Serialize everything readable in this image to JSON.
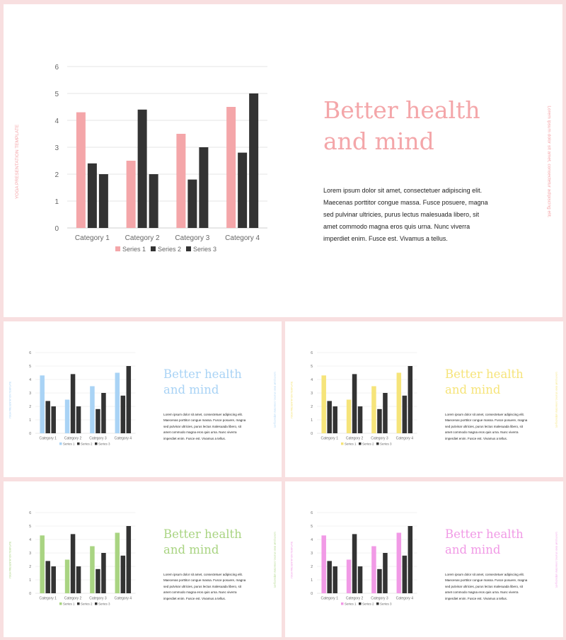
{
  "text": {
    "side_left": "YOGA PRESENTATION TEMPLATE",
    "side_right": "Lorem ipsum dolor sit amet, consectetur adipiscing elit.",
    "title_line1": "Better health",
    "title_line2": "and mind",
    "body": "Lorem ipsum dolor sit amet, consectetuer adipiscing elit. Maecenas porttitor congue massa. Fusce posuere, magna sed pulvinar ultricies, purus lectus malesuada libero, sit amet commodo magna eros quis urna. Nunc viverra imperdiet enim. Fusce est. Vivamus a tellus."
  },
  "slides": [
    {
      "name": "slide-pink-large",
      "accent": "#f4a6a9"
    },
    {
      "name": "slide-blue",
      "accent": "#a9d3f5"
    },
    {
      "name": "slide-yellow",
      "accent": "#f6e47a"
    },
    {
      "name": "slide-green",
      "accent": "#a9d482"
    },
    {
      "name": "slide-magenta",
      "accent": "#f19ae6"
    }
  ],
  "dark_color": "#333333",
  "chart_data": {
    "type": "bar",
    "categories": [
      "Category 1",
      "Category 2",
      "Category 3",
      "Category 4"
    ],
    "series": [
      {
        "name": "Series 1",
        "values": [
          4.3,
          2.5,
          3.5,
          4.5
        ]
      },
      {
        "name": "Series 2",
        "values": [
          2.4,
          4.4,
          1.8,
          2.8
        ]
      },
      {
        "name": "Series 3",
        "values": [
          2,
          2,
          3,
          5
        ]
      }
    ],
    "ylim": [
      0,
      6
    ],
    "yticks": [
      0,
      1,
      2,
      3,
      4,
      5,
      6
    ],
    "grid": true,
    "legend": "bottom"
  }
}
